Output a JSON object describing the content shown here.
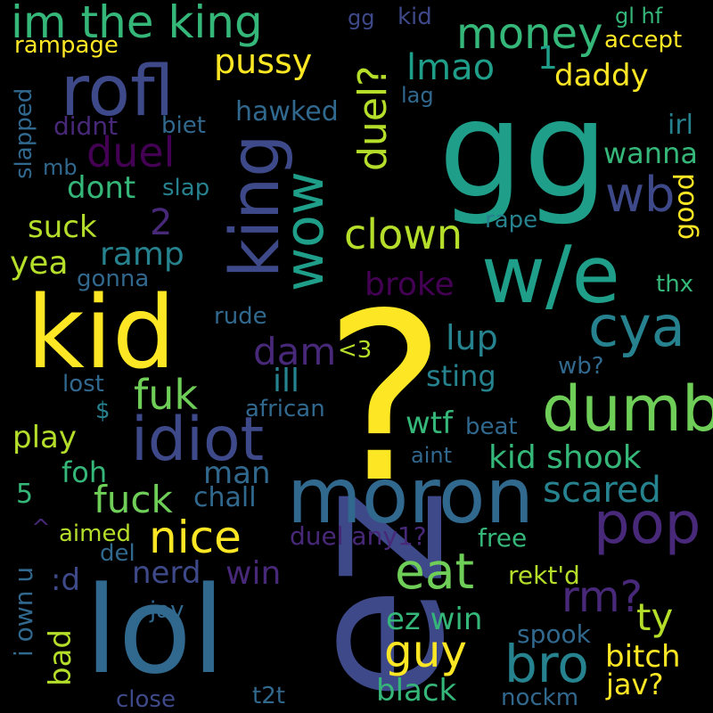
{
  "background": "#000000",
  "palette": {
    "yellow": "#fde725",
    "lime": "#b5de2b",
    "green": "#6ece58",
    "sea": "#35b779",
    "teal": "#1f9e89",
    "cyan": "#26828e",
    "steel": "#31688e",
    "indigo": "#3e4989",
    "violet": "#482878",
    "purple": "#440154"
  },
  "words": [
    {
      "text": "?",
      "color": "yellow"
    },
    {
      "text": "gg",
      "color": "teal"
    },
    {
      "text": "ez",
      "color": "indigo"
    },
    {
      "text": "lol",
      "color": "steel"
    },
    {
      "text": "kid",
      "color": "yellow"
    },
    {
      "text": "w/e",
      "color": "teal"
    },
    {
      "text": "moron",
      "color": "steel"
    },
    {
      "text": "im the king",
      "color": "sea"
    },
    {
      "text": "rofl",
      "color": "indigo"
    },
    {
      "text": "king",
      "color": "indigo"
    },
    {
      "text": "idiot",
      "color": "indigo"
    },
    {
      "text": "dumb",
      "color": "green"
    },
    {
      "text": "wow",
      "color": "teal"
    },
    {
      "text": "cya",
      "color": "cyan"
    },
    {
      "text": "pop",
      "color": "violet"
    },
    {
      "text": "duel?",
      "color": "lime"
    },
    {
      "text": "bro",
      "color": "cyan"
    },
    {
      "text": "eat",
      "color": "green"
    },
    {
      "text": "money",
      "color": "sea"
    },
    {
      "text": "nice",
      "color": "yellow"
    },
    {
      "text": "clown",
      "color": "lime"
    },
    {
      "text": "guy",
      "color": "yellow"
    },
    {
      "text": "wb",
      "color": "indigo"
    },
    {
      "text": "duel",
      "color": "purple"
    },
    {
      "text": "fuk",
      "color": "green"
    },
    {
      "text": "scared",
      "color": "cyan"
    },
    {
      "text": "kid shook",
      "color": "sea"
    },
    {
      "text": "fuck",
      "color": "green"
    },
    {
      "text": "rm?",
      "color": "violet"
    },
    {
      "text": "ty",
      "color": "lime"
    },
    {
      "text": "pussy",
      "color": "yellow"
    },
    {
      "text": "lmao",
      "color": "teal"
    },
    {
      "text": "1",
      "color": "teal"
    },
    {
      "text": "dam",
      "color": "violet"
    },
    {
      "text": "ill",
      "color": "cyan"
    },
    {
      "text": "lup",
      "color": "cyan"
    },
    {
      "text": "broke",
      "color": "purple"
    },
    {
      "text": "ramp",
      "color": "cyan"
    },
    {
      "text": "dont",
      "color": "sea"
    },
    {
      "text": "2",
      "color": "violet"
    },
    {
      "text": "suck",
      "color": "lime"
    },
    {
      "text": "yea",
      "color": "lime"
    },
    {
      "text": "daddy",
      "color": "yellow"
    },
    {
      "text": "accept",
      "color": "yellow"
    },
    {
      "text": "gl hf",
      "color": "sea"
    },
    {
      "text": "rampage",
      "color": "yellow"
    },
    {
      "text": "gg",
      "color": "indigo"
    },
    {
      "text": "kid",
      "color": "indigo"
    },
    {
      "text": "hawked",
      "color": "steel"
    },
    {
      "text": "didnt",
      "color": "violet"
    },
    {
      "text": "biet",
      "color": "steel"
    },
    {
      "text": "slapped",
      "color": "steel"
    },
    {
      "text": "mb",
      "color": "steel"
    },
    {
      "text": "slap",
      "color": "cyan"
    },
    {
      "text": "lag",
      "color": "steel"
    },
    {
      "text": "irl",
      "color": "cyan"
    },
    {
      "text": "wanna",
      "color": "sea"
    },
    {
      "text": "good",
      "color": "yellow"
    },
    {
      "text": "rape",
      "color": "cyan"
    },
    {
      "text": "thx",
      "color": "sea"
    },
    {
      "text": "gonna",
      "color": "steel"
    },
    {
      "text": "rude",
      "color": "steel"
    },
    {
      "text": "<3",
      "color": "lime"
    },
    {
      "text": "wb?",
      "color": "steel"
    },
    {
      "text": "sting",
      "color": "cyan"
    },
    {
      "text": "lost",
      "color": "steel"
    },
    {
      "text": "$",
      "color": "cyan"
    },
    {
      "text": "african",
      "color": "steel"
    },
    {
      "text": "wtf",
      "color": "sea"
    },
    {
      "text": "beat",
      "color": "steel"
    },
    {
      "text": "play",
      "color": "lime"
    },
    {
      "text": "aint",
      "color": "steel"
    },
    {
      "text": "foh",
      "color": "sea"
    },
    {
      "text": "man",
      "color": "steel"
    },
    {
      "text": "chall",
      "color": "steel"
    },
    {
      "text": "5",
      "color": "sea"
    },
    {
      "text": "aimed",
      "color": "lime"
    },
    {
      "text": "duel any1?",
      "color": "violet"
    },
    {
      "text": "free",
      "color": "sea"
    },
    {
      "text": "^",
      "color": "violet"
    },
    {
      "text": "del",
      "color": "steel"
    },
    {
      "text": "nerd",
      "color": "indigo"
    },
    {
      "text": "win",
      "color": "violet"
    },
    {
      "text": ":d",
      "color": "indigo"
    },
    {
      "text": "rekt'd",
      "color": "lime"
    },
    {
      "text": "i own u",
      "color": "steel"
    },
    {
      "text": "bad",
      "color": "lime"
    },
    {
      "text": "jav",
      "color": "steel"
    },
    {
      "text": "ez win",
      "color": "sea"
    },
    {
      "text": "spook",
      "color": "steel"
    },
    {
      "text": "bitch",
      "color": "yellow"
    },
    {
      "text": "jav?",
      "color": "yellow"
    },
    {
      "text": "close",
      "color": "indigo"
    },
    {
      "text": "t2t",
      "color": "steel"
    },
    {
      "text": "black",
      "color": "sea"
    },
    {
      "text": "nockm",
      "color": "steel"
    }
  ]
}
